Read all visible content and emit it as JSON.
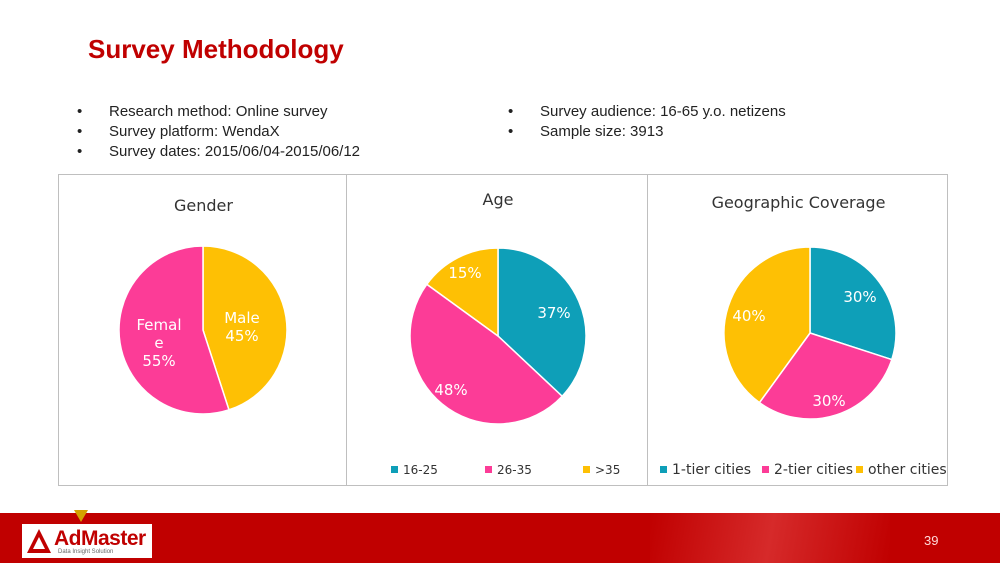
{
  "slide": {
    "title": "Survey Methodology",
    "bullets_left": [
      "Research method: Online survey",
      "Survey platform: WendaX",
      "Survey dates: 2015/06/04-2015/06/12"
    ],
    "bullets_right": [
      "Survey audience: 16-65 y.o. netizens",
      "Sample size: 3913"
    ],
    "page_number": "39"
  },
  "logo": {
    "name": "AdMaster",
    "tagline": "Data Insight Solution"
  },
  "colors": {
    "teal": "#0e9fb8",
    "pink": "#fc3c97",
    "gold": "#fec004",
    "accent_red": "#c00000"
  },
  "chart_data": [
    {
      "type": "pie",
      "title": "Gender",
      "slices": [
        {
          "label": "Male",
          "value": 45,
          "text": "45%",
          "color": "#fec004"
        },
        {
          "label": "Femal e",
          "value": 55,
          "text": "55%",
          "color": "#fc3c97"
        }
      ],
      "legend": []
    },
    {
      "type": "pie",
      "title": "Age",
      "slices": [
        {
          "label": "16-25",
          "value": 37,
          "text": "37%",
          "color": "#0e9fb8"
        },
        {
          "label": "26-35",
          "value": 48,
          "text": "48%",
          "color": "#fc3c97"
        },
        {
          "label": ">35",
          "value": 15,
          "text": "15%",
          "color": "#fec004"
        }
      ],
      "legend": [
        "16-25",
        "26-35",
        ">35"
      ],
      "legend_position": "bottom"
    },
    {
      "type": "pie",
      "title": "Geographic Coverage",
      "slices": [
        {
          "label": "1-tier cities",
          "value": 30,
          "text": "30%",
          "color": "#0e9fb8"
        },
        {
          "label": "2-tier cities",
          "value": 30,
          "text": "30%",
          "color": "#fc3c97"
        },
        {
          "label": "other cities",
          "value": 40,
          "text": "40%",
          "color": "#fec004"
        }
      ],
      "legend": [
        "1-tier cities",
        "2-tier cities",
        "other cities"
      ],
      "legend_position": "bottom"
    }
  ]
}
